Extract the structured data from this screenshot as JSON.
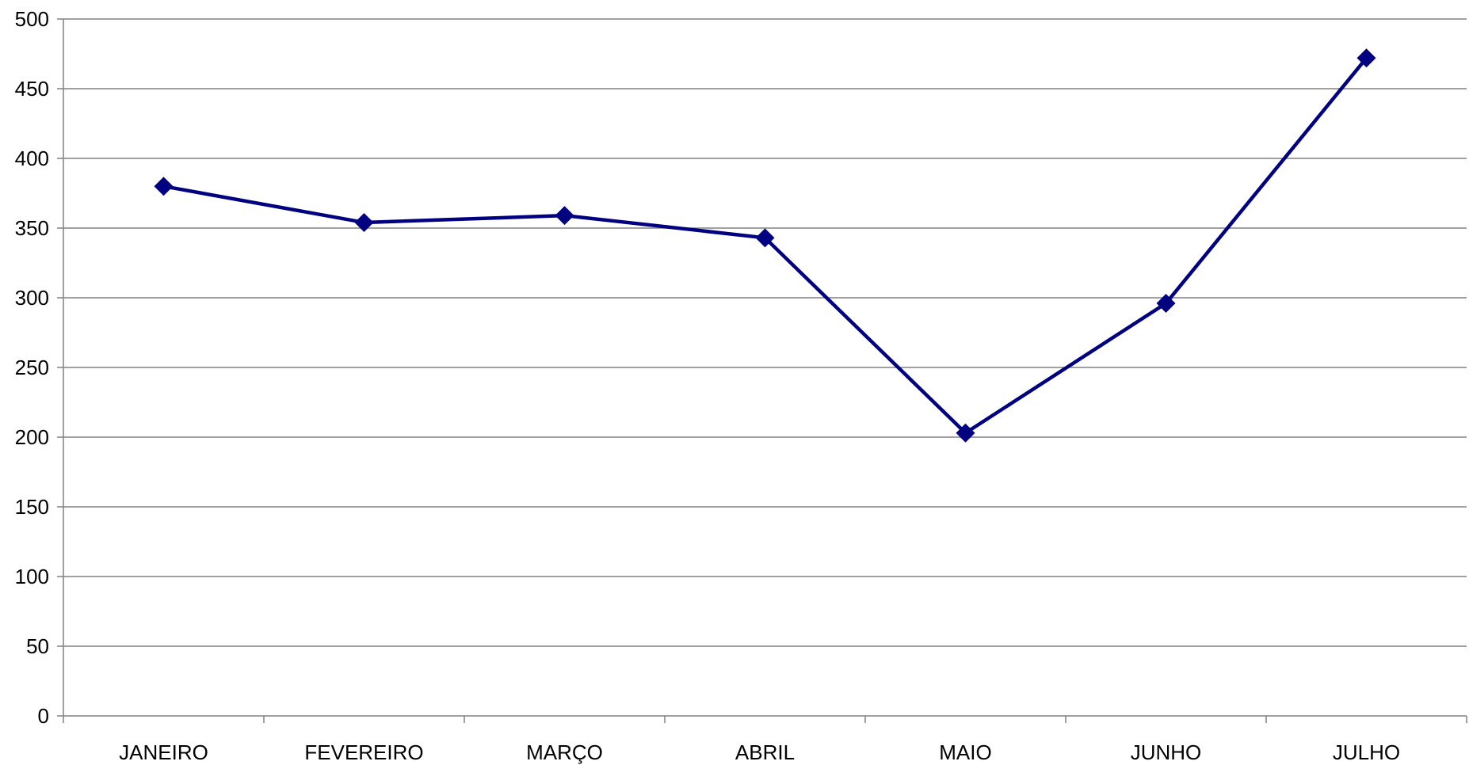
{
  "chart_data": {
    "type": "line",
    "categories": [
      "JANEIRO",
      "FEVEREIRO",
      "MARÇO",
      "ABRIL",
      "MAIO",
      "JUNHO",
      "JULHO"
    ],
    "series": [
      {
        "values": [
          380,
          354,
          359,
          343,
          203,
          296,
          472
        ],
        "color": "#000080",
        "marker": "diamond"
      }
    ],
    "ylim": [
      0,
      500
    ],
    "yticks": [
      0,
      50,
      100,
      150,
      200,
      250,
      300,
      350,
      400,
      450,
      500
    ],
    "grid": true,
    "legend": "none"
  }
}
